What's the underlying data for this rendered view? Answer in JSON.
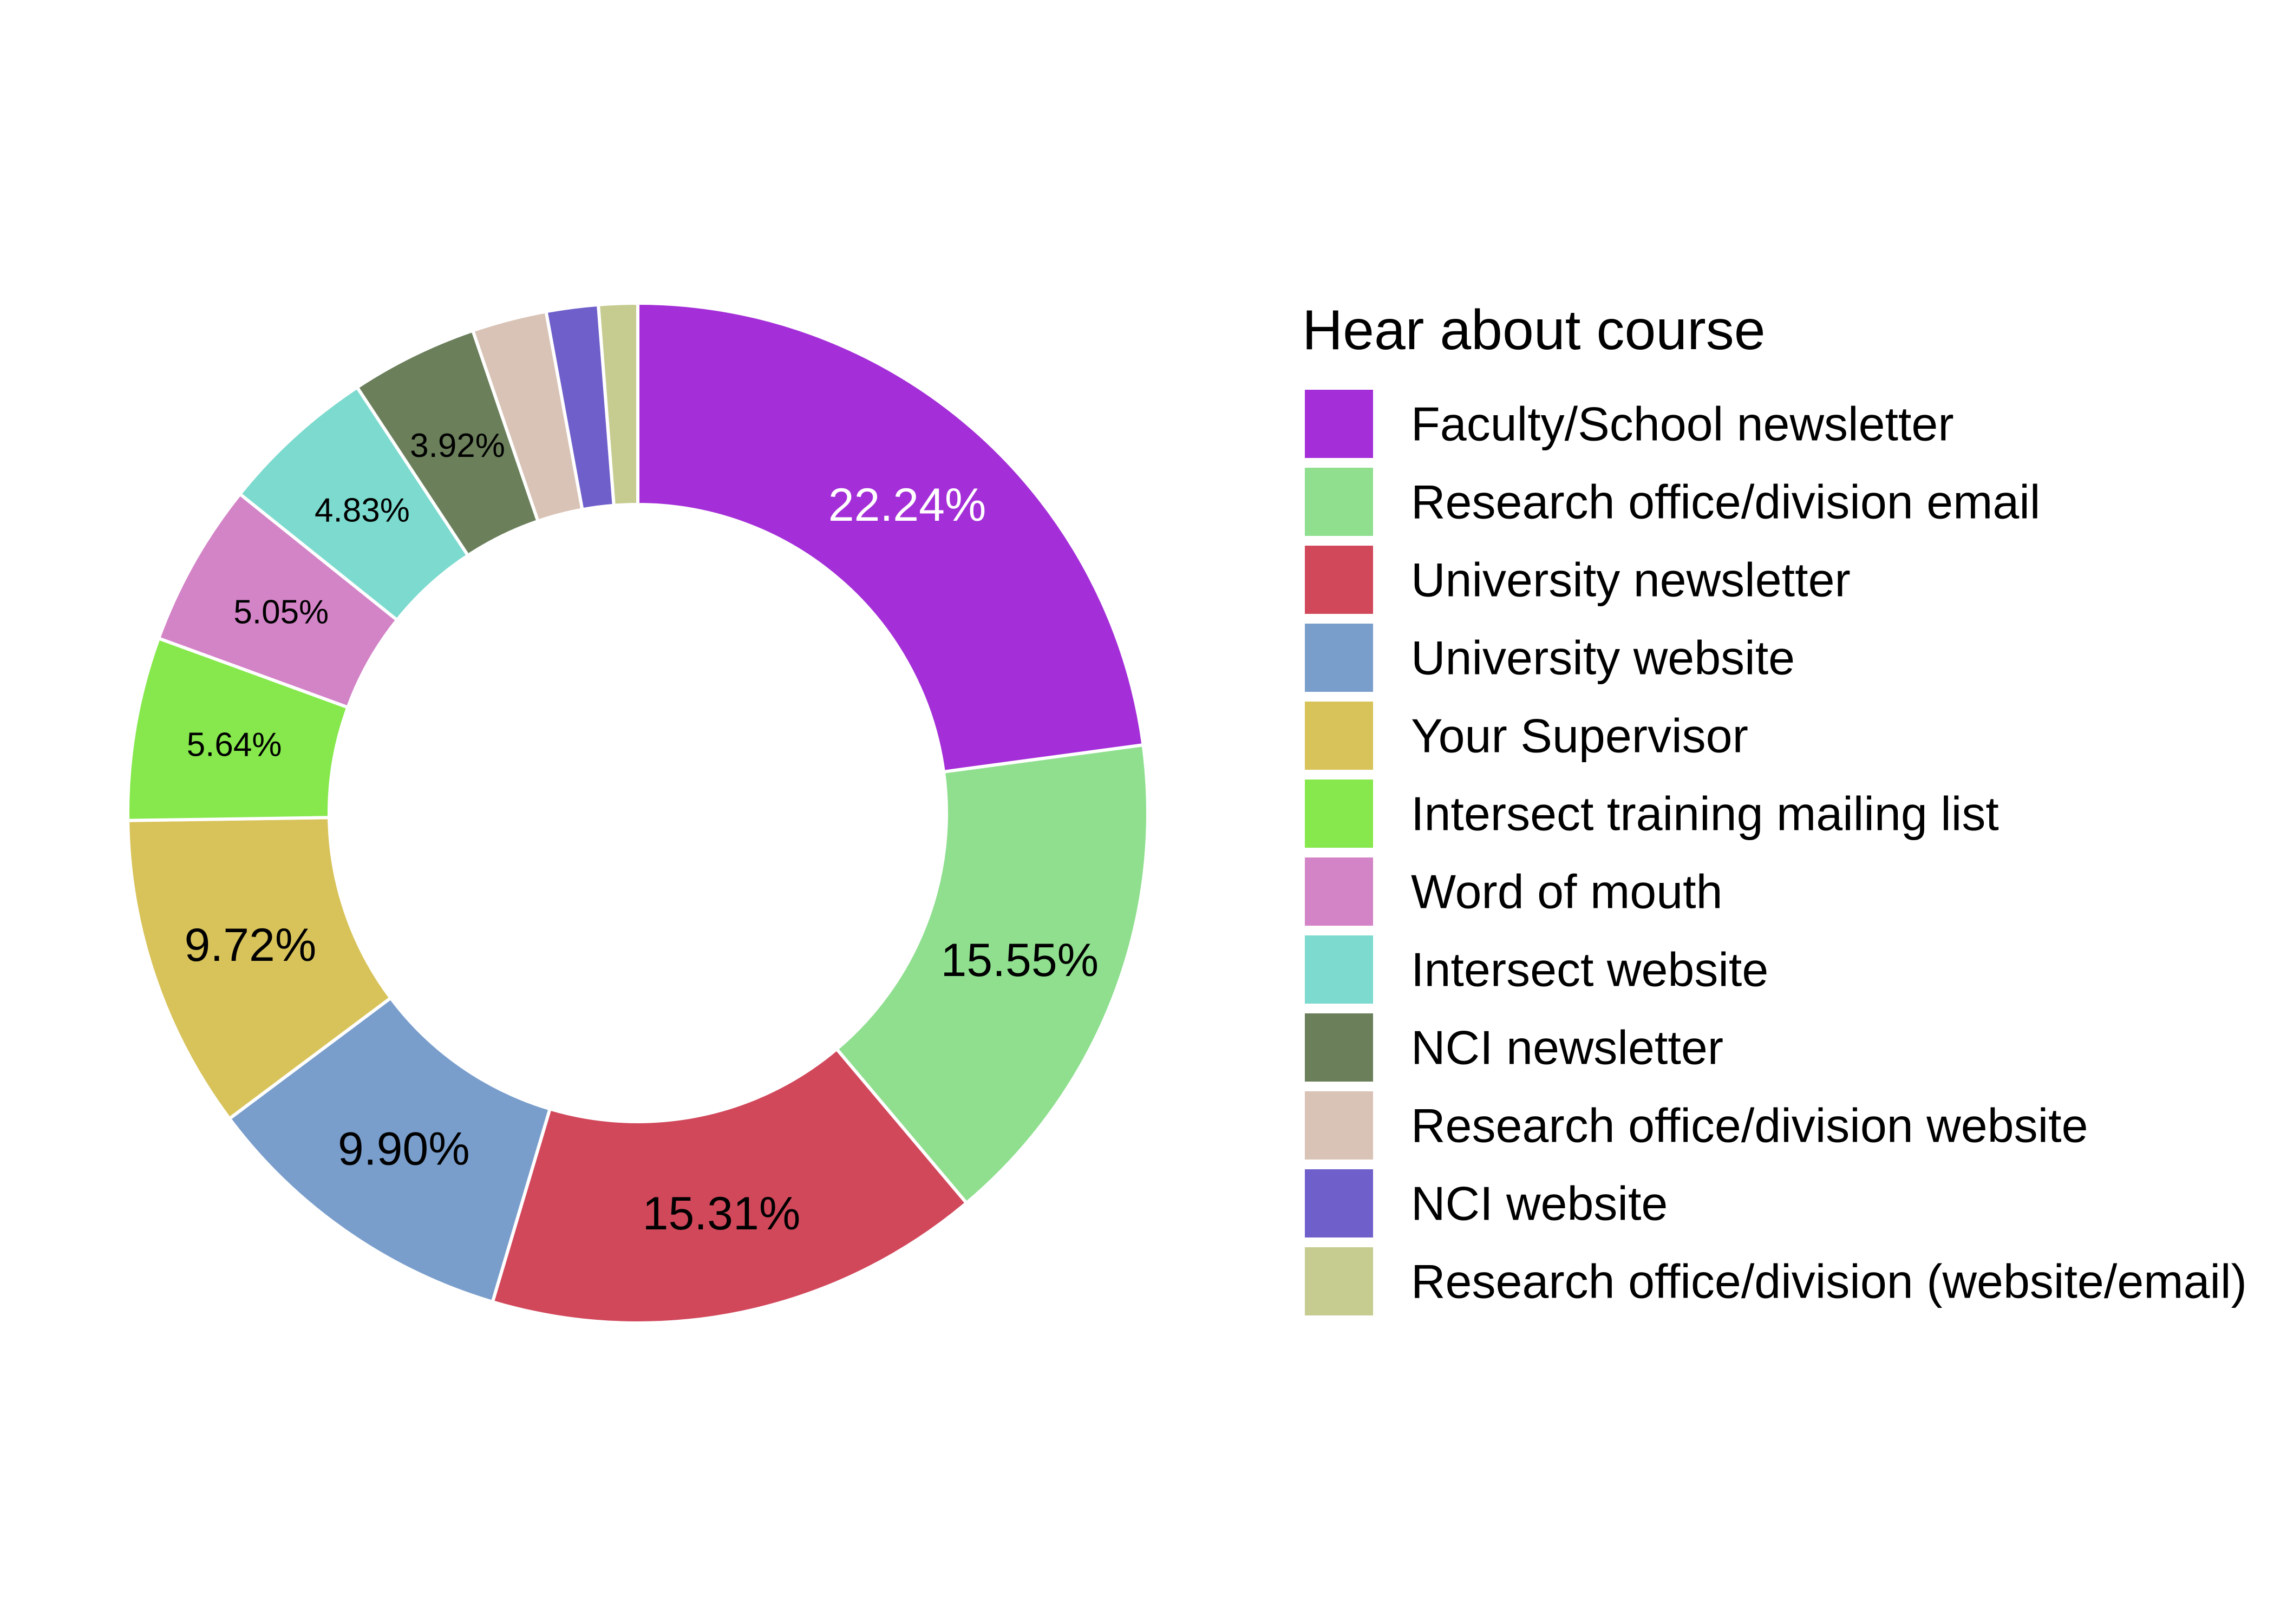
{
  "chart_data": {
    "type": "pie",
    "donut": true,
    "legend": {
      "title": "Hear about course",
      "placement": "right"
    },
    "slices": [
      {
        "label": "Faculty/School newsletter",
        "value": 22.24,
        "display": "22.24%",
        "color": "#A42FD8",
        "text_color": "#FFFFFF"
      },
      {
        "label": "Research office/division email",
        "value": 15.55,
        "display": "15.55%",
        "color": "#8FDF8F",
        "text_color": "#000000"
      },
      {
        "label": "University newsletter",
        "value": 15.31,
        "display": "15.31%",
        "color": "#D1485B",
        "text_color": "#000000"
      },
      {
        "label": "University website",
        "value": 9.9,
        "display": "9.90%",
        "color": "#799ECC",
        "text_color": "#000000"
      },
      {
        "label": "Your Supervisor",
        "value": 9.72,
        "display": "9.72%",
        "color": "#D8C35A",
        "text_color": "#000000"
      },
      {
        "label": "Intersect training mailing list",
        "value": 5.64,
        "display": "5.64%",
        "color": "#86E84C",
        "text_color": "#000000"
      },
      {
        "label": "Word of mouth",
        "value": 5.05,
        "display": "5.05%",
        "color": "#D384C7",
        "text_color": "#000000"
      },
      {
        "label": "Intersect website",
        "value": 4.83,
        "display": "4.83%",
        "color": "#7CDACF",
        "text_color": "#000000"
      },
      {
        "label": "NCI newsletter",
        "value": 3.92,
        "display": "3.92%",
        "color": "#6B7F5B",
        "text_color": "#000000"
      },
      {
        "label": "Research office/division website",
        "value": 2.3,
        "display": "",
        "color": "#D9C3B6",
        "text_color": "#000000"
      },
      {
        "label": "NCI website",
        "value": 1.6,
        "display": "",
        "color": "#6F5FCA",
        "text_color": "#000000"
      },
      {
        "label": "Research office/division (website/email)",
        "value": 1.2,
        "display": "",
        "color": "#C6CC90",
        "text_color": "#000000"
      }
    ]
  }
}
